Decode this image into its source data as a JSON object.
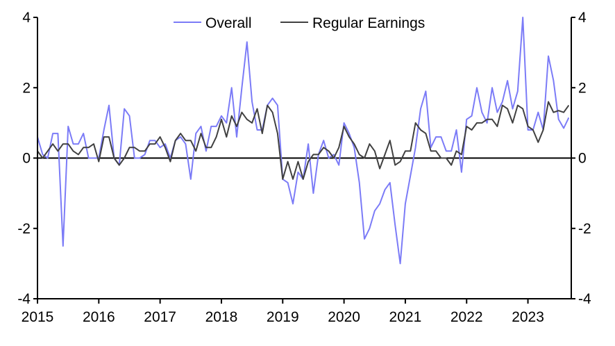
{
  "chart_data": {
    "type": "line",
    "title": "",
    "xlabel": "",
    "ylabel": "",
    "ylim": [
      -4,
      4
    ],
    "y_ticks": [
      "4",
      "2",
      "0",
      "-2",
      "-4"
    ],
    "y_tick_values": [
      4,
      2,
      0,
      -2,
      -4
    ],
    "x_ticks": [
      "2015",
      "2016",
      "2017",
      "2018",
      "2019",
      "2020",
      "2021",
      "2022",
      "2023"
    ],
    "x_start": "2015-01",
    "frequency": "monthly",
    "legend_placement": "top-center",
    "series": [
      {
        "name": "Overall",
        "color": "#7b7bf7",
        "values": [
          0.6,
          0.1,
          0.0,
          0.7,
          0.7,
          -2.5,
          0.9,
          0.4,
          0.4,
          0.7,
          0.0,
          0.0,
          0.0,
          0.8,
          1.5,
          0.0,
          -0.2,
          1.4,
          1.2,
          0.0,
          0.0,
          0.1,
          0.5,
          0.5,
          0.3,
          0.4,
          0.0,
          0.5,
          0.6,
          0.4,
          -0.6,
          0.7,
          0.9,
          0.2,
          0.9,
          0.9,
          1.2,
          1.0,
          2.0,
          0.6,
          2.0,
          3.3,
          1.6,
          0.8,
          0.8,
          1.5,
          1.7,
          1.5,
          -0.6,
          -0.7,
          -1.3,
          -0.4,
          -0.6,
          0.4,
          -1.0,
          0.1,
          0.5,
          0.0,
          0.1,
          -0.2,
          1.0,
          0.7,
          0.3,
          -0.7,
          -2.3,
          -2.0,
          -1.5,
          -1.3,
          -0.9,
          -0.7,
          -1.9,
          -3.0,
          -1.3,
          -0.5,
          0.3,
          1.4,
          1.9,
          0.3,
          0.6,
          0.6,
          0.2,
          0.2,
          0.8,
          -0.4,
          1.1,
          1.2,
          2.0,
          1.3,
          1.0,
          2.0,
          1.3,
          1.6,
          2.2,
          1.4,
          1.9,
          4.0,
          0.8,
          0.8,
          1.3,
          0.8,
          2.9,
          2.2,
          1.1,
          0.85,
          1.15
        ]
      },
      {
        "name": "Regular Earnings",
        "color": "#404040",
        "values": [
          0.2,
          0.0,
          0.2,
          0.4,
          0.2,
          0.4,
          0.4,
          0.2,
          0.1,
          0.3,
          0.3,
          0.4,
          -0.1,
          0.6,
          0.6,
          0.0,
          -0.2,
          0.0,
          0.3,
          0.3,
          0.2,
          0.2,
          0.4,
          0.4,
          0.6,
          0.3,
          -0.1,
          0.5,
          0.7,
          0.5,
          0.5,
          0.2,
          0.7,
          0.3,
          0.3,
          0.6,
          1.1,
          0.6,
          1.2,
          0.9,
          1.3,
          1.1,
          1.0,
          1.4,
          0.7,
          1.5,
          1.3,
          0.7,
          -0.6,
          -0.1,
          -0.6,
          -0.1,
          -0.6,
          -0.1,
          0.1,
          0.1,
          0.3,
          0.2,
          0.0,
          0.3,
          0.9,
          0.6,
          0.4,
          0.1,
          0.0,
          0.4,
          0.2,
          -0.3,
          0.1,
          0.5,
          -0.2,
          -0.1,
          0.2,
          0.2,
          1.0,
          0.8,
          0.7,
          0.2,
          0.2,
          0.0,
          0.0,
          -0.2,
          0.2,
          0.1,
          0.9,
          0.8,
          1.0,
          1.0,
          1.1,
          1.1,
          0.9,
          1.5,
          1.4,
          1.0,
          1.5,
          1.4,
          0.9,
          0.8,
          0.45,
          0.8,
          1.6,
          1.3,
          1.35,
          1.3,
          1.5
        ]
      }
    ]
  }
}
